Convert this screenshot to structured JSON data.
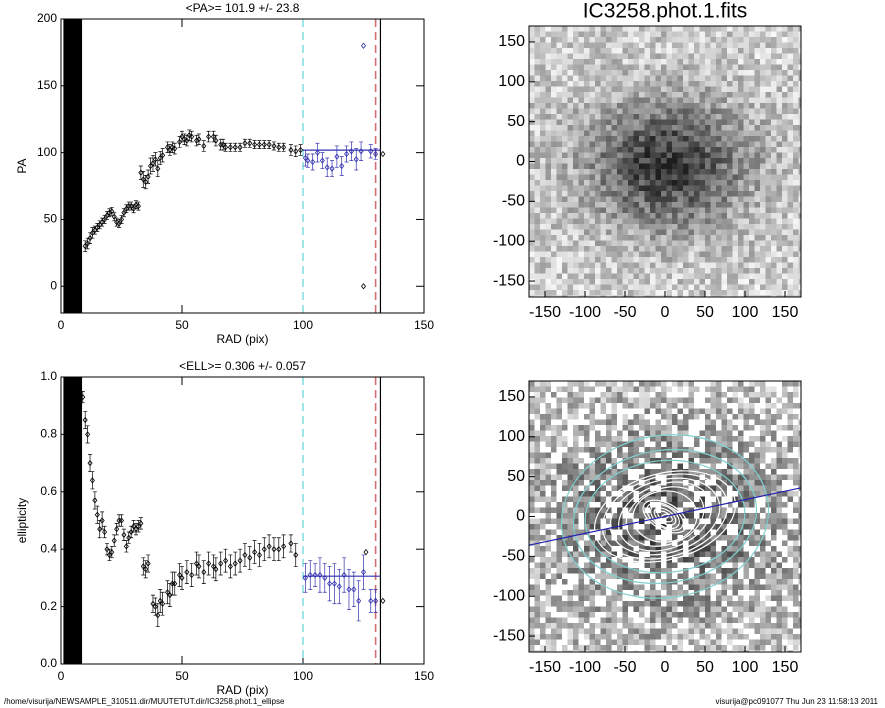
{
  "chart_data": [
    {
      "type": "scatter",
      "title": "<PA>= 101.9 +/-  23.8",
      "x_label": "RAD (pix)",
      "y_label": "PA",
      "xlim": [
        0,
        150
      ],
      "xticks": [
        0,
        50,
        100,
        150
      ],
      "ylim": [
        -20,
        200
      ],
      "yticks": [
        0,
        50,
        100,
        150,
        200
      ],
      "filled_span": [
        1,
        8.7
      ],
      "series": [
        {
          "color": "#000000",
          "x": [
            10,
            11,
            12,
            13,
            14,
            15,
            16,
            17,
            18,
            19,
            20,
            21,
            22,
            23,
            24,
            25,
            26,
            27,
            28,
            29,
            30,
            31,
            32,
            33,
            34,
            35,
            36,
            37,
            38,
            39,
            40,
            41,
            42,
            44,
            45,
            46,
            47,
            49,
            50,
            51,
            52,
            53,
            54,
            56,
            57,
            59,
            61,
            63,
            64,
            66,
            67,
            68,
            70,
            72,
            74,
            76,
            78,
            80,
            82,
            84,
            86,
            88,
            90,
            92,
            95,
            97,
            99,
            125,
            133
          ],
          "values": [
            30,
            32,
            36,
            40,
            42,
            44,
            46,
            48,
            50,
            53,
            55,
            56,
            52,
            48,
            47,
            50,
            55,
            58,
            60,
            60,
            58,
            61,
            60,
            85,
            80,
            78,
            82,
            90,
            92,
            95,
            88,
            96,
            98,
            104,
            102,
            104,
            103,
            108,
            112,
            110,
            109,
            113,
            112,
            109,
            110,
            105,
            112,
            112,
            109,
            106,
            106,
            104,
            104,
            104,
            104,
            107,
            107,
            106,
            106,
            106,
            106,
            105,
            104,
            104,
            102,
            101,
            102,
            0,
            99
          ],
          "errors": [
            4,
            4,
            4,
            4,
            3,
            3,
            3,
            3,
            3,
            3,
            3,
            3,
            3,
            3,
            3,
            3,
            3,
            3,
            3,
            3,
            3,
            3,
            3,
            5,
            6,
            5,
            5,
            6,
            6,
            5,
            6,
            5,
            5,
            4,
            4,
            4,
            4,
            4,
            4,
            4,
            4,
            4,
            4,
            4,
            4,
            4,
            4,
            4,
            4,
            4,
            4,
            3,
            3,
            3,
            3,
            3,
            3,
            3,
            3,
            3,
            3,
            3,
            3,
            3,
            4,
            4,
            4,
            0,
            0
          ]
        },
        {
          "color": "#3030b0",
          "x": [
            101,
            102,
            104,
            106,
            108,
            110,
            112,
            114,
            116,
            118,
            120,
            122,
            124,
            125,
            128,
            130
          ],
          "values": [
            96,
            94,
            93,
            100,
            94,
            89,
            88,
            97,
            90,
            99,
            101,
            95,
            101,
            180,
            101,
            99
          ],
          "errors": [
            6,
            5,
            6,
            7,
            6,
            7,
            6,
            8,
            7,
            6,
            7,
            8,
            7,
            0,
            5,
            4
          ]
        }
      ],
      "vlines": [
        {
          "x": 100,
          "color": "#88e0e0",
          "dash": true
        },
        {
          "x": 130,
          "color": "#d07070",
          "dash": true
        },
        {
          "x": 132,
          "color": "#000000",
          "dash": false
        }
      ],
      "mean_line": {
        "value": 101.9,
        "xrange": [
          100,
          132
        ],
        "color": "#3030b0"
      }
    },
    {
      "type": "scatter",
      "title": "<ELL>= 0.306 +/-  0.057",
      "x_label": "RAD (pix)",
      "y_label": "ellipticity",
      "xlim": [
        0,
        150
      ],
      "xticks": [
        0,
        50,
        100,
        150
      ],
      "ylim": [
        0,
        1
      ],
      "yticks": [
        {
          "value": 0,
          "label": "0.0"
        },
        0.2,
        0.4,
        0.6,
        0.8,
        {
          "value": 1,
          "label": "1.0"
        }
      ],
      "filled_span": [
        1,
        8.7
      ],
      "series": [
        {
          "color": "#000000",
          "x": [
            9,
            10,
            11,
            12,
            13,
            14,
            15,
            16,
            17,
            18,
            19,
            20,
            21,
            22,
            23,
            24,
            25,
            26,
            27,
            28,
            29,
            30,
            31,
            32,
            33,
            34,
            35,
            36,
            38,
            39,
            40,
            41,
            42,
            44,
            45,
            46,
            47,
            49,
            50,
            52,
            54,
            56,
            57,
            59,
            61,
            63,
            64,
            66,
            68,
            70,
            72,
            74,
            76,
            78,
            80,
            82,
            84,
            86,
            88,
            90,
            92,
            95,
            97,
            126,
            133
          ],
          "values": [
            0.93,
            0.85,
            0.8,
            0.7,
            0.64,
            0.57,
            0.52,
            0.47,
            0.5,
            0.46,
            0.4,
            0.38,
            0.39,
            0.43,
            0.47,
            0.5,
            0.5,
            0.45,
            0.41,
            0.44,
            0.46,
            0.48,
            0.47,
            0.48,
            0.49,
            0.34,
            0.33,
            0.35,
            0.21,
            0.2,
            0.17,
            0.22,
            0.21,
            0.25,
            0.24,
            0.28,
            0.28,
            0.31,
            0.3,
            0.32,
            0.31,
            0.35,
            0.34,
            0.32,
            0.35,
            0.34,
            0.33,
            0.35,
            0.36,
            0.34,
            0.35,
            0.36,
            0.38,
            0.37,
            0.39,
            0.38,
            0.4,
            0.41,
            0.4,
            0.4,
            0.41,
            0.42,
            0.38,
            0.39,
            0.22
          ],
          "errors": [
            0.02,
            0.03,
            0.03,
            0.03,
            0.03,
            0.03,
            0.03,
            0.03,
            0.03,
            0.02,
            0.02,
            0.02,
            0.02,
            0.02,
            0.02,
            0.02,
            0.02,
            0.02,
            0.02,
            0.02,
            0.02,
            0.02,
            0.02,
            0.02,
            0.02,
            0.03,
            0.03,
            0.03,
            0.03,
            0.03,
            0.04,
            0.04,
            0.04,
            0.04,
            0.04,
            0.04,
            0.04,
            0.04,
            0.04,
            0.04,
            0.04,
            0.04,
            0.04,
            0.04,
            0.04,
            0.04,
            0.04,
            0.04,
            0.04,
            0.04,
            0.04,
            0.04,
            0.04,
            0.04,
            0.04,
            0.04,
            0.04,
            0.04,
            0.04,
            0.04,
            0.04,
            0.03,
            0.04,
            0,
            0
          ]
        },
        {
          "color": "#3030b0",
          "x": [
            101,
            103,
            105,
            107,
            109,
            111,
            113,
            115,
            117,
            119,
            121,
            123,
            125,
            128,
            130
          ],
          "values": [
            0.3,
            0.31,
            0.31,
            0.31,
            0.3,
            0.28,
            0.28,
            0.27,
            0.31,
            0.26,
            0.26,
            0.22,
            0.32,
            0.22,
            0.22
          ],
          "errors": [
            0.05,
            0.05,
            0.04,
            0.06,
            0.05,
            0.06,
            0.07,
            0.06,
            0.06,
            0.07,
            0.06,
            0.07,
            0.06,
            0.04,
            0.04
          ]
        }
      ],
      "vlines": [
        {
          "x": 100,
          "color": "#88e0e0",
          "dash": true
        },
        {
          "x": 130,
          "color": "#d07070",
          "dash": true
        },
        {
          "x": 132,
          "color": "#000000",
          "dash": false
        }
      ],
      "mean_line": {
        "value": 0.306,
        "xrange": [
          100,
          132
        ],
        "color": "#3030b0"
      }
    },
    {
      "type": "image",
      "title": "IC3258.phot.1.fits",
      "xlim": [
        -170,
        170
      ],
      "ylim": [
        -170,
        170
      ],
      "xticks": [
        -150,
        -100,
        -50,
        0,
        50,
        100,
        150
      ],
      "yticks": [
        -150,
        -100,
        -50,
        0,
        50,
        100,
        150
      ]
    },
    {
      "type": "image",
      "xlim": [
        -170,
        170
      ],
      "ylim": [
        -170,
        170
      ],
      "xticks": [
        -150,
        -100,
        -50,
        0,
        50,
        100,
        150
      ],
      "yticks": [
        -150,
        -100,
        -50,
        0,
        50,
        100,
        150
      ],
      "isophotes": [
        {
          "sma": 5,
          "ell": 0.5,
          "pa": 112,
          "color": "#ffffff"
        },
        {
          "sma": 10,
          "ell": 0.48,
          "pa": 60,
          "color": "#ffffff"
        },
        {
          "sma": 15,
          "ell": 0.45,
          "pa": 58,
          "color": "#ffffff"
        },
        {
          "sma": 20,
          "ell": 0.4,
          "pa": 56,
          "color": "#ffffff"
        },
        {
          "sma": 25,
          "ell": 0.45,
          "pa": 60,
          "color": "#ffffff"
        },
        {
          "sma": 30,
          "ell": 0.45,
          "pa": 61,
          "color": "#ffffff"
        },
        {
          "sma": 40,
          "ell": 0.2,
          "pa": 95,
          "color": "#ffffff"
        },
        {
          "sma": 50,
          "ell": 0.3,
          "pa": 110,
          "color": "#ffffff"
        },
        {
          "sma": 60,
          "ell": 0.33,
          "pa": 110,
          "color": "#ffffff"
        },
        {
          "sma": 70,
          "ell": 0.35,
          "pa": 106,
          "color": "#ffffff"
        },
        {
          "sma": 80,
          "ell": 0.37,
          "pa": 106,
          "color": "#ffffff"
        },
        {
          "sma": 90,
          "ell": 0.4,
          "pa": 105,
          "color": "#ffffff"
        },
        {
          "sma": 100,
          "ell": 0.3,
          "pa": 95,
          "color": "#7fd0d0"
        },
        {
          "sma": 115,
          "ell": 0.28,
          "pa": 99,
          "color": "#7fd0d0"
        },
        {
          "sma": 130,
          "ell": 0.22,
          "pa": 99,
          "color": "#7fd0d0"
        }
      ],
      "pa_line": {
        "pa": 101.9,
        "color": "#2020b0"
      }
    }
  ],
  "footer": {
    "path": "/home/visurija/NEWSAMPLE_310511.dir/MUUTETUT.dir/IC3258.phot.1_ellipse",
    "stamp": "visurija@pc091077  Thu Jun 23 11:58:13 2011"
  }
}
